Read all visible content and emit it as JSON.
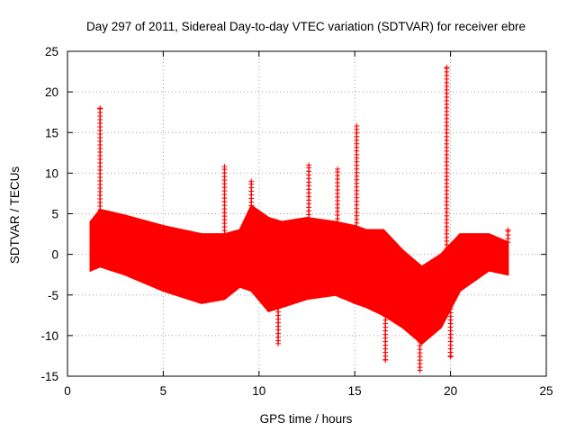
{
  "chart_data": {
    "type": "scatter",
    "title": "Day 297 of 2011, Sidereal Day-to-day VTEC variation (SDTVAR) for receiver ebre",
    "xlabel": "GPS time / hours",
    "ylabel": "SDTVAR / TECUs",
    "xlim": [
      0,
      25
    ],
    "ylim": [
      -15,
      25
    ],
    "xticks": [
      0,
      5,
      10,
      15,
      20,
      25
    ],
    "yticks": [
      -15,
      -10,
      -5,
      0,
      5,
      10,
      15,
      20,
      25
    ],
    "grid": true,
    "marker": "+",
    "color": "#ff0000",
    "band": {
      "x": [
        1.2,
        1.7,
        3.0,
        5.0,
        7.0,
        8.2,
        9.0,
        9.6,
        10.5,
        11.2,
        12.5,
        14.0,
        15.0,
        15.6,
        16.5,
        17.5,
        18.5,
        19.5,
        20.5,
        22.0,
        23.0
      ],
      "upper": [
        4.0,
        5.5,
        4.8,
        3.5,
        2.5,
        2.5,
        3.0,
        6.0,
        4.5,
        4.0,
        4.5,
        4.0,
        3.5,
        3.0,
        3.0,
        0.5,
        -1.5,
        0.0,
        2.5,
        2.5,
        1.5
      ],
      "lower": [
        -2.0,
        -1.5,
        -2.5,
        -4.5,
        -6.0,
        -5.5,
        -4.0,
        -4.5,
        -7.0,
        -6.5,
        -5.5,
        -5.0,
        -6.0,
        -6.5,
        -7.5,
        -9.0,
        -11.0,
        -9.0,
        -4.5,
        -2.0,
        -2.5
      ]
    },
    "spikes": [
      {
        "x": 1.7,
        "y": 18.0
      },
      {
        "x": 8.2,
        "y": 10.8
      },
      {
        "x": 9.6,
        "y": 9.0
      },
      {
        "x": 11.0,
        "y": -11.0
      },
      {
        "x": 12.6,
        "y": 11.0
      },
      {
        "x": 14.1,
        "y": 10.5
      },
      {
        "x": 15.1,
        "y": 15.8
      },
      {
        "x": 16.6,
        "y": -13.0
      },
      {
        "x": 18.4,
        "y": -14.3
      },
      {
        "x": 19.8,
        "y": 23.0
      },
      {
        "x": 20.0,
        "y": -12.6
      },
      {
        "x": 23.0,
        "y": 3.0
      }
    ]
  }
}
